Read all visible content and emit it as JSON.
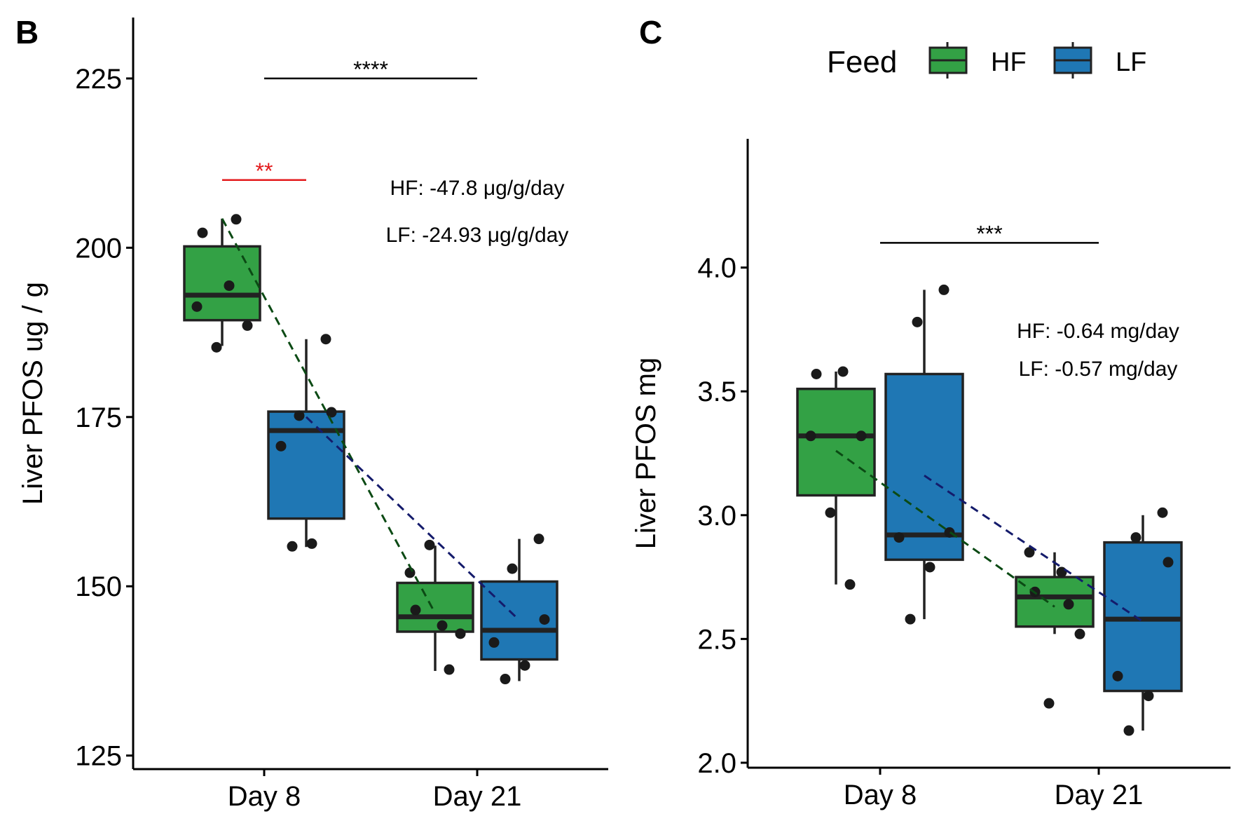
{
  "legend": {
    "title": "Feed",
    "items": [
      {
        "label": "HF",
        "color": "#33a145"
      },
      {
        "label": "LF",
        "color": "#1f77b4"
      }
    ]
  },
  "chart_data": [
    {
      "type": "box",
      "panel": "B",
      "ylabel": "Liver PFOS ug / g",
      "categories": [
        "Day 8",
        "Day 21"
      ],
      "ylim": [
        123,
        234
      ],
      "yticks": [
        "125",
        "150",
        "175",
        "200",
        "225"
      ],
      "series": [
        {
          "name": "HF",
          "color": "#33a145",
          "boxes": [
            {
              "min": 185.5,
              "q1": 189.3,
              "median": 193.0,
              "q3": 200.2,
              "max": 204.3
            },
            {
              "min": 137.5,
              "q1": 143.3,
              "median": 145.5,
              "q3": 150.5,
              "max": 156.0
            }
          ],
          "points": [
            [
              [
                202.2,
                194.4,
                191.3,
                188.5,
                185.3,
                204.2
              ]
            ],
            [
              [
                146.5,
                144.2,
                152.0,
                143.0,
                156.1,
                137.7
              ]
            ]
          ],
          "trend": [
            204.3,
            146.0
          ],
          "trend_color": "#0b4a14"
        },
        {
          "name": "LF",
          "color": "#1f77b4",
          "boxes": [
            {
              "min": 155.8,
              "q1": 160.0,
              "median": 173.0,
              "q3": 175.8,
              "max": 186.5
            },
            {
              "min": 136.0,
              "q1": 139.2,
              "median": 143.5,
              "q3": 150.7,
              "max": 157.0
            }
          ],
          "points": [
            [
              [
                186.5,
                175.2,
                175.7,
                170.7,
                156.3,
                155.9
              ]
            ],
            [
              [
                157.0,
                152.6,
                145.1,
                141.7,
                138.3,
                136.3
              ]
            ]
          ],
          "trend": [
            175.0,
            145.0
          ],
          "trend_color": "#141b6b"
        }
      ],
      "significance": [
        {
          "label": "****",
          "value": 225.0,
          "from": 0,
          "to": 1,
          "color": "#000000"
        },
        {
          "label": "**",
          "value": 210.0,
          "from": 0,
          "to": 0,
          "color": "#e31a1c"
        }
      ],
      "annotations": [
        "HF: -47.8 μg/g/day",
        "LF: -24.93 μg/g/day"
      ]
    },
    {
      "type": "box",
      "panel": "C",
      "ylabel": "Liver PFOS mg",
      "categories": [
        "Day 8",
        "Day 21"
      ],
      "ylim": [
        1.98,
        4.52
      ],
      "yticks": [
        "2.0",
        "2.5",
        "3.0",
        "3.5",
        "4.0"
      ],
      "series": [
        {
          "name": "HF",
          "color": "#33a145",
          "boxes": [
            {
              "min": 2.72,
              "q1": 3.08,
              "median": 3.32,
              "q3": 3.51,
              "max": 3.58
            },
            {
              "min": 2.52,
              "q1": 2.55,
              "median": 2.67,
              "q3": 2.75,
              "max": 2.85
            }
          ],
          "points": [
            [
              [
                3.57,
                3.58,
                3.32,
                3.32,
                3.01,
                2.72
              ]
            ],
            [
              [
                2.69,
                2.77,
                2.85,
                2.52,
                2.24,
                2.64
              ]
            ]
          ],
          "trend": [
            3.26,
            2.63
          ],
          "trend_color": "#0b4a14"
        },
        {
          "name": "LF",
          "color": "#1f77b4",
          "boxes": [
            {
              "min": 2.58,
              "q1": 2.82,
              "median": 2.92,
              "q3": 3.57,
              "max": 3.91
            },
            {
              "min": 2.13,
              "q1": 2.29,
              "median": 2.58,
              "q3": 2.89,
              "max": 3.0
            }
          ],
          "points": [
            [
              [
                3.91,
                3.78,
                2.93,
                2.91,
                2.79,
                2.58
              ]
            ],
            [
              [
                3.01,
                2.91,
                2.81,
                2.35,
                2.27,
                2.13
              ]
            ]
          ],
          "trend": [
            3.16,
            2.57
          ],
          "trend_color": "#141b6b"
        }
      ],
      "significance": [
        {
          "label": "***",
          "value": 4.1,
          "from": 0,
          "to": 1,
          "color": "#000000"
        }
      ],
      "annotations": [
        "HF: -0.64 mg/day",
        "LF: -0.57 mg/day"
      ]
    }
  ]
}
